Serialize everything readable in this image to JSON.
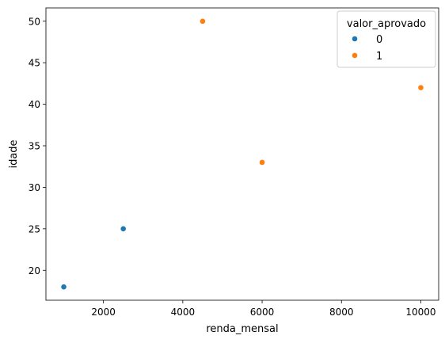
{
  "chart_data": {
    "type": "scatter",
    "title": "",
    "xlabel": "renda_mensal",
    "ylabel": "idade",
    "xlim": [
      550,
      10450
    ],
    "ylim": [
      16.4,
      51.6
    ],
    "xticks": [
      2000,
      4000,
      6000,
      8000,
      10000
    ],
    "yticks": [
      20,
      25,
      30,
      35,
      40,
      45,
      50
    ],
    "grid": false,
    "legend": {
      "title": "valor_aprovado",
      "placement": "top-right"
    },
    "series": [
      {
        "name": "0",
        "color": "#1f77b4",
        "points": [
          {
            "x": 1000,
            "y": 18
          },
          {
            "x": 2500,
            "y": 25
          }
        ]
      },
      {
        "name": "1",
        "color": "#ff7f0e",
        "points": [
          {
            "x": 4500,
            "y": 50
          },
          {
            "x": 6000,
            "y": 33
          },
          {
            "x": 10000,
            "y": 42
          }
        ]
      }
    ]
  }
}
